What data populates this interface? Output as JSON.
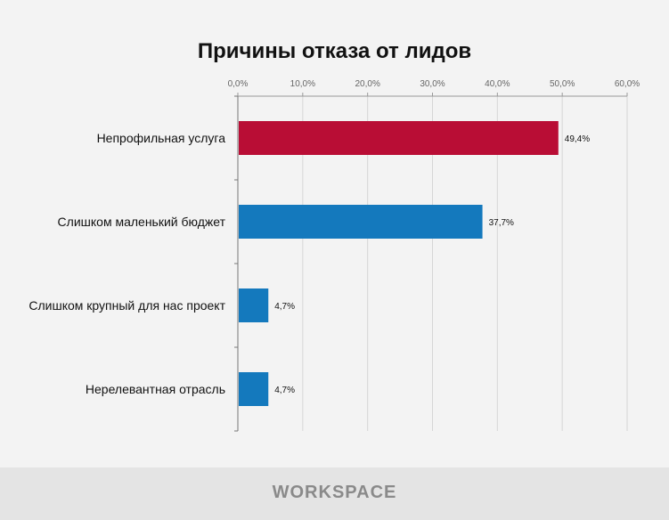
{
  "chart_data": {
    "type": "bar",
    "orientation": "horizontal",
    "title": "Причины отказа от лидов",
    "categories": [
      "Непрофильная услуга",
      "Слишком маленький бюджет",
      "Слишком крупный для нас проект",
      "Нерелевантная отрасль"
    ],
    "values": [
      49.4,
      37.7,
      4.7,
      4.7
    ],
    "data_labels": [
      "49,4%",
      "37,7%",
      "4,7%",
      "4,7%"
    ],
    "bar_colors": [
      "#b90d35",
      "#1479bd",
      "#1479bd",
      "#1479bd"
    ],
    "xlim": [
      0,
      60
    ],
    "x_ticks": [
      0,
      10,
      20,
      30,
      40,
      50,
      60
    ],
    "x_tick_labels": [
      "0,0%",
      "10,0%",
      "20,0%",
      "30,0%",
      "40,0%",
      "50,0%",
      "60,0%"
    ],
    "x_axis_position": "top",
    "grid": true,
    "xlabel": "",
    "ylabel": ""
  },
  "footer": {
    "logo": "WORKSPACE"
  }
}
